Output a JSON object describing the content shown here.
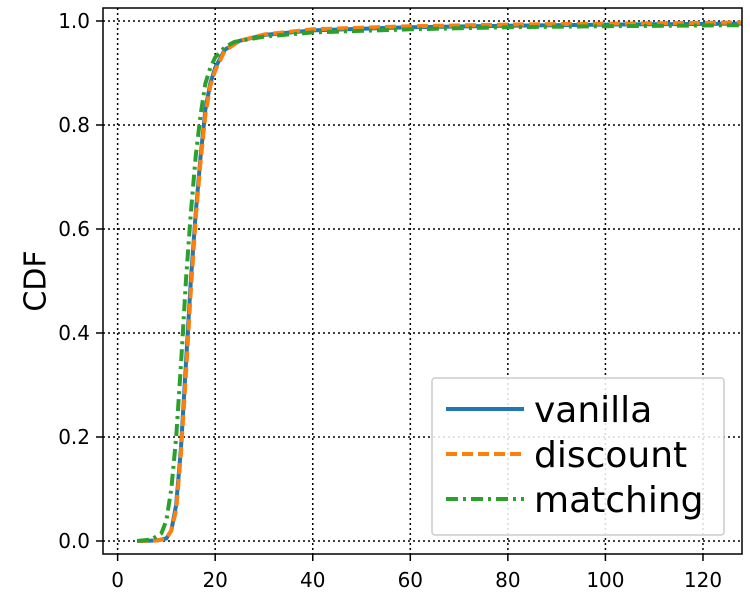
{
  "chart_data": {
    "type": "line",
    "title": "",
    "xlabel": "",
    "ylabel": "CDF",
    "xlim": [
      -3,
      128
    ],
    "ylim": [
      -0.025,
      1.025
    ],
    "xticks": [
      0,
      20,
      40,
      60,
      80,
      100,
      120
    ],
    "yticks": [
      0.0,
      0.2,
      0.4,
      0.6,
      0.8,
      1.0
    ],
    "xtick_labels": [
      "0",
      "20",
      "40",
      "60",
      "80",
      "100",
      "120"
    ],
    "ytick_labels": [
      "0.0",
      "0.2",
      "0.4",
      "0.6",
      "0.8",
      "1.0"
    ],
    "grid": true,
    "legend_position": "bottom-right",
    "series": [
      {
        "name": "vanilla",
        "color": "#1f77b4",
        "style": "solid",
        "x": [
          4,
          8,
          10,
          11,
          12,
          13,
          14,
          15,
          16,
          17,
          18,
          19,
          20,
          22,
          25,
          30,
          40,
          60,
          80,
          100,
          128
        ],
        "y": [
          0.0,
          0.001,
          0.005,
          0.02,
          0.07,
          0.18,
          0.34,
          0.5,
          0.63,
          0.74,
          0.83,
          0.88,
          0.91,
          0.945,
          0.962,
          0.973,
          0.982,
          0.988,
          0.991,
          0.993,
          0.995
        ]
      },
      {
        "name": "discount",
        "color": "#ff7f0e",
        "style": "dashed",
        "x": [
          4,
          8,
          10,
          11,
          12,
          13,
          14,
          15,
          16,
          17,
          18,
          19,
          20,
          22,
          25,
          30,
          40,
          60,
          80,
          100,
          128
        ],
        "y": [
          0.0,
          0.001,
          0.005,
          0.02,
          0.06,
          0.17,
          0.32,
          0.48,
          0.62,
          0.73,
          0.82,
          0.875,
          0.905,
          0.943,
          0.962,
          0.974,
          0.984,
          0.99,
          0.993,
          0.995,
          0.997
        ]
      },
      {
        "name": "matching",
        "color": "#2ca02c",
        "style": "dashdot",
        "x": [
          4,
          7,
          9,
          10,
          11,
          12,
          13,
          14,
          15,
          16,
          17,
          18,
          19,
          20,
          22,
          24,
          30,
          40,
          60,
          80,
          100,
          128
        ],
        "y": [
          0.0,
          0.003,
          0.015,
          0.04,
          0.1,
          0.2,
          0.34,
          0.5,
          0.63,
          0.74,
          0.82,
          0.88,
          0.91,
          0.93,
          0.95,
          0.96,
          0.97,
          0.978,
          0.984,
          0.988,
          0.99,
          0.992
        ]
      }
    ]
  }
}
